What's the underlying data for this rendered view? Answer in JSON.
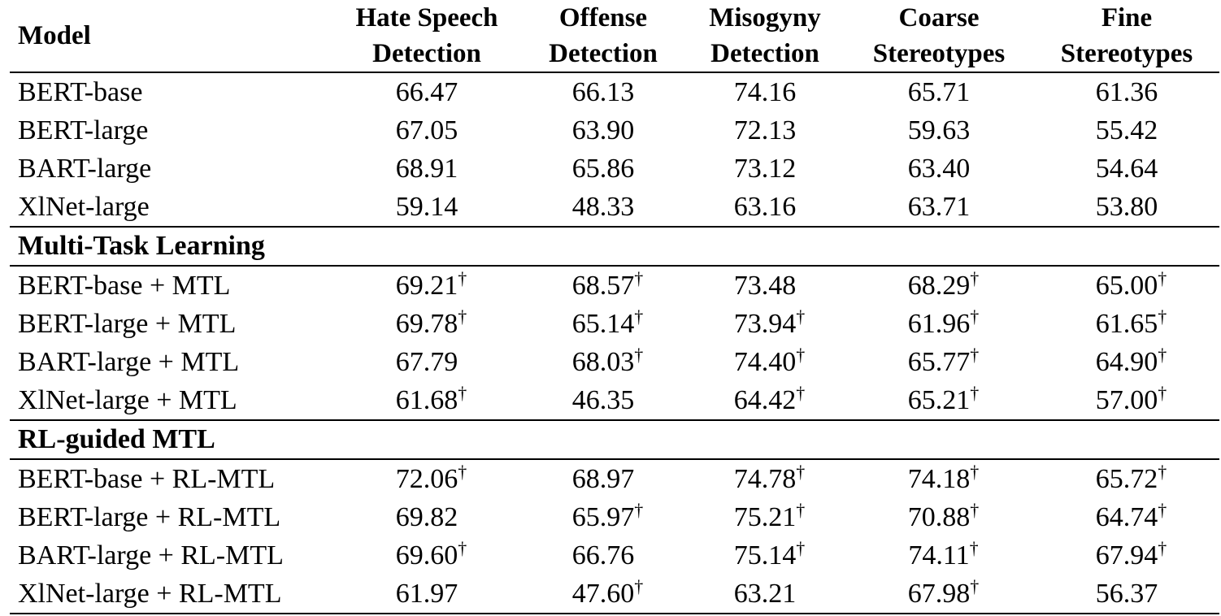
{
  "table": {
    "headers": [
      {
        "key": "model",
        "lines": [
          "Model"
        ]
      },
      {
        "key": "hate",
        "lines": [
          "Hate Speech",
          "Detection"
        ]
      },
      {
        "key": "offense",
        "lines": [
          "Offense",
          "Detection"
        ]
      },
      {
        "key": "misogyny",
        "lines": [
          "Misogyny",
          "Detection"
        ]
      },
      {
        "key": "coarse",
        "lines": [
          "Coarse",
          "Stereotypes"
        ]
      },
      {
        "key": "fine",
        "lines": [
          "Fine",
          "Stereotypes"
        ]
      }
    ],
    "sections": [
      {
        "title": "",
        "rows": [
          {
            "model": "BERT-base",
            "cells": [
              {
                "v": "66.47",
                "d": false
              },
              {
                "v": "66.13",
                "d": false
              },
              {
                "v": "74.16",
                "d": false
              },
              {
                "v": "65.71",
                "d": false
              },
              {
                "v": "61.36",
                "d": false
              }
            ]
          },
          {
            "model": "BERT-large",
            "cells": [
              {
                "v": "67.05",
                "d": false
              },
              {
                "v": "63.90",
                "d": false
              },
              {
                "v": "72.13",
                "d": false
              },
              {
                "v": "59.63",
                "d": false
              },
              {
                "v": "55.42",
                "d": false
              }
            ]
          },
          {
            "model": "BART-large",
            "cells": [
              {
                "v": "68.91",
                "d": false
              },
              {
                "v": "65.86",
                "d": false
              },
              {
                "v": "73.12",
                "d": false
              },
              {
                "v": "63.40",
                "d": false
              },
              {
                "v": "54.64",
                "d": false
              }
            ]
          },
          {
            "model": "XlNet-large",
            "cells": [
              {
                "v": "59.14",
                "d": false
              },
              {
                "v": "48.33",
                "d": false
              },
              {
                "v": "63.16",
                "d": false
              },
              {
                "v": "63.71",
                "d": false
              },
              {
                "v": "53.80",
                "d": false
              }
            ]
          }
        ]
      },
      {
        "title": "Multi-Task Learning",
        "rows": [
          {
            "model": "BERT-base + MTL",
            "cells": [
              {
                "v": "69.21",
                "d": true
              },
              {
                "v": "68.57",
                "d": true
              },
              {
                "v": "73.48",
                "d": false
              },
              {
                "v": "68.29",
                "d": true
              },
              {
                "v": "65.00",
                "d": true
              }
            ]
          },
          {
            "model": "BERT-large + MTL",
            "cells": [
              {
                "v": "69.78",
                "d": true
              },
              {
                "v": "65.14",
                "d": true
              },
              {
                "v": "73.94",
                "d": true
              },
              {
                "v": "61.96",
                "d": true
              },
              {
                "v": "61.65",
                "d": true
              }
            ]
          },
          {
            "model": "BART-large + MTL",
            "cells": [
              {
                "v": "67.79",
                "d": false
              },
              {
                "v": "68.03",
                "d": true
              },
              {
                "v": "74.40",
                "d": true
              },
              {
                "v": "65.77",
                "d": true
              },
              {
                "v": "64.90",
                "d": true
              }
            ]
          },
          {
            "model": "XlNet-large + MTL",
            "cells": [
              {
                "v": "61.68",
                "d": true
              },
              {
                "v": "46.35",
                "d": false
              },
              {
                "v": "64.42",
                "d": true
              },
              {
                "v": "65.21",
                "d": true
              },
              {
                "v": "57.00",
                "d": true
              }
            ]
          }
        ]
      },
      {
        "title": "RL-guided MTL",
        "rows": [
          {
            "model": "BERT-base + RL-MTL",
            "cells": [
              {
                "v": "72.06",
                "d": true
              },
              {
                "v": "68.97",
                "d": false
              },
              {
                "v": "74.78",
                "d": true
              },
              {
                "v": "74.18",
                "d": true
              },
              {
                "v": "65.72",
                "d": true
              }
            ]
          },
          {
            "model": "BERT-large + RL-MTL",
            "cells": [
              {
                "v": "69.82",
                "d": false
              },
              {
                "v": "65.97",
                "d": true
              },
              {
                "v": "75.21",
                "d": true
              },
              {
                "v": "70.88",
                "d": true
              },
              {
                "v": "64.74",
                "d": true
              }
            ]
          },
          {
            "model": "BART-large + RL-MTL",
            "cells": [
              {
                "v": "69.60",
                "d": true
              },
              {
                "v": "66.76",
                "d": false
              },
              {
                "v": "75.14",
                "d": true
              },
              {
                "v": "74.11",
                "d": true
              },
              {
                "v": "67.94",
                "d": true
              }
            ]
          },
          {
            "model": "XlNet-large + RL-MTL",
            "cells": [
              {
                "v": "61.97",
                "d": false
              },
              {
                "v": "47.60",
                "d": true
              },
              {
                "v": "63.21",
                "d": false
              },
              {
                "v": "67.98",
                "d": true
              },
              {
                "v": "56.37",
                "d": false
              }
            ]
          }
        ]
      }
    ],
    "dagger_symbol": "†"
  }
}
